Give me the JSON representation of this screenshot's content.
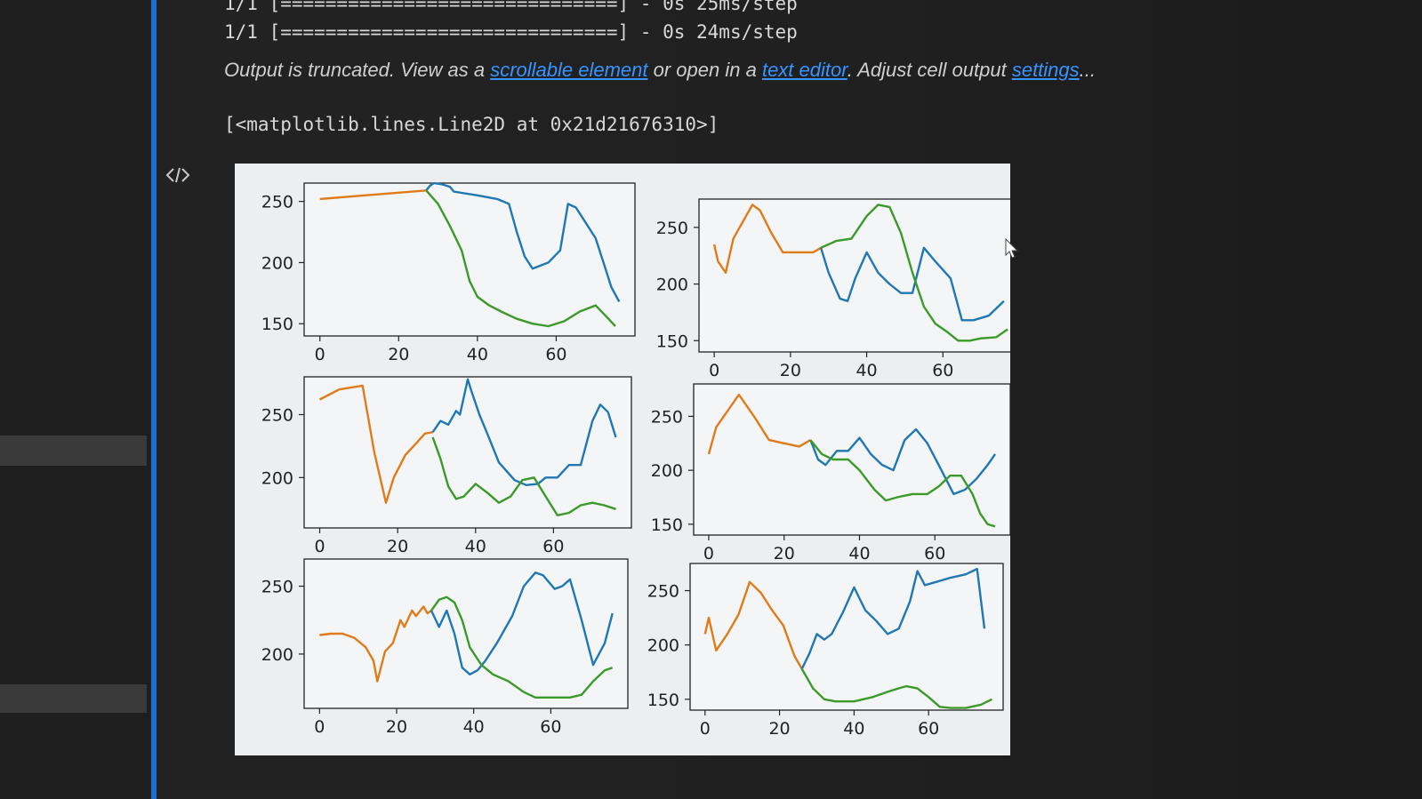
{
  "log": {
    "line1": "1/1 [==============================] - 0s 25ms/step",
    "line2": "1/1 [==============================] - 0s 24ms/step"
  },
  "truncated": {
    "prefix": "Output is truncated. View as a ",
    "link1": "scrollable element",
    "mid1": " or open in a ",
    "link2": "text editor",
    "mid2": ". Adjust cell output ",
    "link3": "settings",
    "suffix": "..."
  },
  "repr": "[<matplotlib.lines.Line2D at 0x21d21676310>]",
  "icons": {
    "code": "code-brackets-icon",
    "cursor": "mouse-pointer-icon"
  },
  "colors": {
    "blue": "#1f77b4",
    "orange": "#e07b1a",
    "green": "#3a9a2a",
    "link": "#3794ff",
    "cell_bar": "#1f6fd1"
  },
  "chart_data": [
    {
      "type": "line",
      "xticks": [
        0,
        20,
        40,
        60
      ],
      "yticks": [
        150,
        200,
        250
      ],
      "xlim": [
        -4,
        80
      ],
      "ylim": [
        140,
        265
      ],
      "series": [
        {
          "color": "orange",
          "x": [
            0,
            27
          ],
          "y": [
            252,
            259
          ]
        },
        {
          "color": "blue",
          "x": [
            27,
            28,
            29,
            31,
            33,
            34,
            36,
            40,
            45,
            48,
            50,
            52,
            54,
            58,
            61,
            63,
            65,
            68,
            70,
            72,
            74,
            76
          ],
          "y": [
            259,
            263,
            265,
            264,
            262,
            258,
            257,
            255,
            252,
            248,
            225,
            205,
            195,
            200,
            210,
            248,
            245,
            230,
            220,
            200,
            180,
            168
          ]
        },
        {
          "color": "green",
          "x": [
            27,
            30,
            33,
            36,
            38,
            40,
            43,
            46,
            50,
            54,
            58,
            62,
            66,
            70,
            73,
            75
          ],
          "y": [
            259,
            248,
            230,
            210,
            185,
            172,
            165,
            160,
            154,
            150,
            148,
            152,
            160,
            165,
            155,
            148
          ]
        }
      ]
    },
    {
      "type": "line",
      "xticks": [
        0,
        20,
        40,
        60
      ],
      "yticks": [
        150,
        200,
        250
      ],
      "xlim": [
        -4,
        80
      ],
      "ylim": [
        140,
        275
      ],
      "series": [
        {
          "color": "orange",
          "x": [
            0,
            1,
            2,
            3,
            5,
            10,
            12,
            15,
            18,
            22,
            26,
            28
          ],
          "y": [
            235,
            220,
            215,
            210,
            240,
            270,
            265,
            245,
            228,
            228,
            228,
            232
          ]
        },
        {
          "color": "blue",
          "x": [
            28,
            30,
            33,
            35,
            37,
            40,
            43,
            46,
            49,
            52,
            55,
            58,
            62,
            65,
            68,
            72,
            76
          ],
          "y": [
            232,
            210,
            187,
            185,
            205,
            228,
            210,
            200,
            192,
            192,
            232,
            220,
            205,
            168,
            168,
            172,
            185
          ]
        },
        {
          "color": "green",
          "x": [
            28,
            32,
            36,
            40,
            43,
            46,
            49,
            52,
            55,
            58,
            61,
            64,
            67,
            70,
            74,
            77
          ],
          "y": [
            232,
            238,
            240,
            260,
            270,
            268,
            245,
            210,
            180,
            165,
            158,
            150,
            150,
            152,
            153,
            160
          ]
        }
      ]
    },
    {
      "type": "line",
      "xticks": [
        0,
        20,
        40,
        60
      ],
      "yticks": [
        200,
        250
      ],
      "xlim": [
        -4,
        80
      ],
      "ylim": [
        160,
        280
      ],
      "series": [
        {
          "color": "orange",
          "x": [
            0,
            5,
            11,
            14,
            17,
            19,
            22,
            25,
            27,
            29
          ],
          "y": [
            262,
            270,
            273,
            220,
            180,
            200,
            218,
            228,
            235,
            236
          ]
        },
        {
          "color": "blue",
          "x": [
            29,
            31,
            33,
            35,
            36,
            38,
            39,
            41,
            43,
            46,
            50,
            53,
            56,
            58,
            61,
            64,
            67,
            70,
            72,
            74,
            76
          ],
          "y": [
            236,
            245,
            242,
            253,
            250,
            278,
            268,
            250,
            235,
            212,
            198,
            194,
            195,
            200,
            200,
            210,
            210,
            245,
            258,
            252,
            232
          ]
        },
        {
          "color": "green",
          "x": [
            29,
            31,
            33,
            35,
            37,
            40,
            43,
            46,
            49,
            52,
            55,
            58,
            61,
            64,
            67,
            70,
            73,
            76
          ],
          "y": [
            232,
            215,
            193,
            183,
            185,
            195,
            188,
            180,
            185,
            198,
            200,
            185,
            170,
            172,
            178,
            180,
            178,
            175
          ]
        }
      ]
    },
    {
      "type": "line",
      "xticks": [
        0,
        20,
        40,
        60
      ],
      "yticks": [
        150,
        200,
        250
      ],
      "xlim": [
        -4,
        80
      ],
      "ylim": [
        140,
        280
      ],
      "series": [
        {
          "color": "orange",
          "x": [
            0,
            2,
            5,
            8,
            12,
            16,
            20,
            24,
            27
          ],
          "y": [
            215,
            240,
            255,
            270,
            250,
            228,
            225,
            222,
            228
          ]
        },
        {
          "color": "blue",
          "x": [
            27,
            29,
            31,
            34,
            37,
            40,
            43,
            46,
            49,
            52,
            55,
            58,
            61,
            65,
            68,
            71,
            74,
            76
          ],
          "y": [
            228,
            210,
            205,
            218,
            218,
            230,
            215,
            205,
            200,
            228,
            238,
            225,
            205,
            178,
            182,
            192,
            205,
            215
          ]
        },
        {
          "color": "green",
          "x": [
            27,
            30,
            33,
            37,
            40,
            44,
            47,
            50,
            54,
            58,
            61,
            64,
            67,
            70,
            72,
            74,
            76
          ],
          "y": [
            228,
            215,
            210,
            210,
            200,
            182,
            172,
            175,
            178,
            178,
            185,
            195,
            195,
            178,
            160,
            150,
            148
          ]
        }
      ]
    },
    {
      "type": "line",
      "xticks": [
        0,
        20,
        40,
        60
      ],
      "yticks": [
        200,
        250
      ],
      "xlim": [
        -4,
        80
      ],
      "ylim": [
        160,
        270
      ],
      "series": [
        {
          "color": "orange",
          "x": [
            0,
            3,
            6,
            9,
            12,
            14,
            15,
            17,
            19,
            21,
            22,
            24,
            25,
            27,
            28,
            29
          ],
          "y": [
            214,
            215,
            215,
            212,
            205,
            195,
            180,
            202,
            208,
            225,
            220,
            232,
            228,
            235,
            230,
            232
          ]
        },
        {
          "color": "blue",
          "x": [
            29,
            31,
            33,
            35,
            37,
            39,
            41,
            43,
            46,
            50,
            53,
            56,
            58,
            61,
            63,
            65,
            68,
            71,
            74,
            76
          ],
          "y": [
            232,
            220,
            232,
            215,
            190,
            185,
            188,
            195,
            208,
            228,
            250,
            260,
            258,
            248,
            250,
            255,
            225,
            192,
            208,
            230
          ]
        },
        {
          "color": "green",
          "x": [
            29,
            31,
            33,
            35,
            37,
            39,
            42,
            45,
            49,
            53,
            56,
            59,
            62,
            65,
            68,
            71,
            74,
            76
          ],
          "y": [
            232,
            240,
            242,
            238,
            225,
            205,
            192,
            185,
            180,
            172,
            168,
            168,
            168,
            168,
            170,
            180,
            188,
            190
          ]
        }
      ]
    },
    {
      "type": "line",
      "xticks": [
        0,
        20,
        40,
        60
      ],
      "yticks": [
        150,
        200,
        250
      ],
      "xlim": [
        -4,
        80
      ],
      "ylim": [
        140,
        275
      ],
      "series": [
        {
          "color": "orange",
          "x": [
            0,
            1,
            3,
            6,
            9,
            12,
            15,
            18,
            21,
            24,
            26
          ],
          "y": [
            210,
            225,
            195,
            210,
            228,
            258,
            248,
            232,
            218,
            190,
            178
          ]
        },
        {
          "color": "blue",
          "x": [
            26,
            28,
            30,
            32,
            34,
            37,
            40,
            43,
            46,
            49,
            52,
            55,
            57,
            59,
            62,
            66,
            70,
            73,
            75
          ],
          "y": [
            178,
            192,
            210,
            205,
            210,
            230,
            253,
            232,
            222,
            210,
            215,
            240,
            268,
            255,
            258,
            262,
            265,
            270,
            215
          ]
        },
        {
          "color": "green",
          "x": [
            26,
            29,
            32,
            35,
            40,
            45,
            50,
            54,
            57,
            60,
            63,
            66,
            70,
            74,
            77
          ],
          "y": [
            178,
            160,
            150,
            148,
            148,
            152,
            158,
            162,
            160,
            152,
            143,
            142,
            142,
            145,
            150
          ]
        }
      ]
    }
  ]
}
